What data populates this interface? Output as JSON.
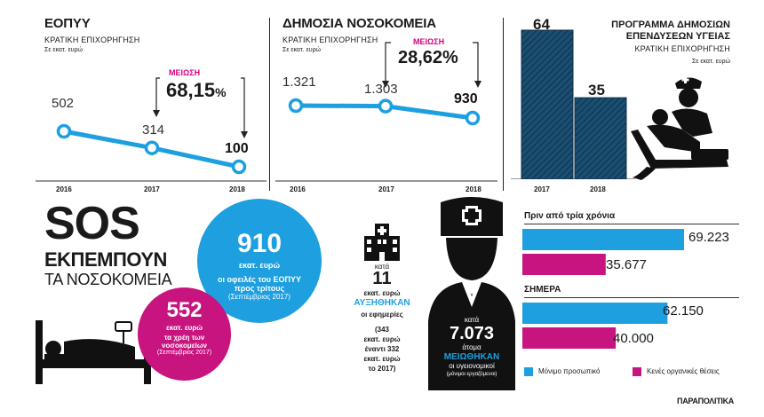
{
  "eopyy": {
    "title": "ΕΟΠΥΥ",
    "subtitle": "ΚΡΑΤΙΚΗ ΕΠΙΧΟΡΗΓΗΣΗ",
    "unit": "Σε εκατ. ευρώ",
    "reduction_label": "ΜΕΙΩΣΗ",
    "reduction_value": "68,15",
    "reduction_pct": "%",
    "point_labels": [
      "502",
      "314",
      "100"
    ]
  },
  "hospitals": {
    "title": "ΔΗΜΟΣΙΑ ΝΟΣΟΚΟΜΕΙΑ",
    "subtitle": "ΚΡΑΤΙΚΗ ΕΠΙΧΟΡΗΓΗΣΗ",
    "unit": "Σε εκατ. ευρώ",
    "reduction_label": "ΜΕΙΩΣΗ",
    "reduction_value": "28,62%",
    "point_labels": [
      "1.321",
      "1.303",
      "930"
    ]
  },
  "program": {
    "title_line1": "ΠΡΟΓΡΑΜΜΑ ΔΗΜΟΣΙΩΝ",
    "title_line2": "ΕΠΕΝΔΥΣΕΩΝ ΥΓΕΙΑΣ",
    "subtitle": "ΚΡΑΤΙΚΗ ΕΠΙΧΟΡΗΓΗΣΗ",
    "unit": "Σε εκατ. ευρώ",
    "bar_labels": [
      "64",
      "35"
    ]
  },
  "sos": {
    "line1": "SOS",
    "line2": "ΕΚΠΕΜΠΟΥΝ",
    "line3": "ΤΑ ΝΟΣΟΚΟΜΕΙΑ"
  },
  "circle_blue": {
    "value": "910",
    "line1": "εκατ. ευρώ",
    "line2": "οι οφειλές του ΕΟΠΥΥ",
    "line3": "προς τρίτους",
    "line4": "(Σεπτέμβριος 2017)"
  },
  "circle_mag": {
    "value": "552",
    "line1": "εκατ. ευρώ",
    "line2": "τα χρέη των",
    "line3": "νοσοκομείων",
    "line4": "(Σεπτέμβριος 2017)"
  },
  "shifts": {
    "kata": "κατά",
    "value": "11",
    "line1": "εκατ. ευρώ",
    "highlight": "ΑΥΞΗΘΗΚΑΝ",
    "line2": "οι εφημερίες",
    "n1": "(343",
    "n2": "εκατ. ευρώ",
    "n3": "έναντι 332",
    "n4": "εκατ. ευρώ",
    "n5": "το 2017)"
  },
  "nurse": {
    "kata": "κατά",
    "value": "7.073",
    "line1": "άτομα",
    "highlight": "ΜΕΙΩΘΗΚΑΝ",
    "line2": "οι υγειονομικοί",
    "line3": "(μόνιμοι εργαζόμενοι)"
  },
  "staff": {
    "header_before": "Πριν από τρία χρόνια",
    "header_now": "ΣΗΜΕΡΑ",
    "bar_labels_before": [
      "69.223",
      "35.677"
    ],
    "bar_labels_now": [
      "62.150",
      "40.000"
    ],
    "legend": [
      "Μόνιμο προσωπικό",
      "Κενές οργανικές θέσεις"
    ]
  },
  "source": "ΠΑΡΑΠΟΛΙΤΙΚΑ",
  "colors": {
    "blue": "#1d9fe0",
    "magenta": "#c8147f",
    "navy": "#1b4f72",
    "dark": "#1a1a1a"
  },
  "chart_data": [
    {
      "type": "line",
      "title": "ΕΟΠΥΥ",
      "x": [
        "2016",
        "2017",
        "2018"
      ],
      "series": [
        {
          "values": [
            502,
            314,
            100
          ]
        }
      ]
    },
    {
      "type": "line",
      "title": "ΔΗΜΟΣΙΑ ΝΟΣΟΚΟΜΕΙΑ",
      "x": [
        "2016",
        "2017",
        "2018"
      ],
      "series": [
        {
          "values": [
            1321,
            1303,
            930
          ]
        }
      ]
    },
    {
      "type": "bar",
      "title": "ΠΡΟΓΡΑΜΜΑ ΔΗΜΟΣΙΩΝ ΕΠΕΝΔΥΣΕΩΝ ΥΓΕΙΑΣ",
      "categories": [
        "2017",
        "2018"
      ],
      "values": [
        64,
        35
      ]
    },
    {
      "type": "bar",
      "orientation": "horizontal",
      "categories": [
        "Πριν από τρία χρόνια",
        "ΣΗΜΕΡΑ"
      ],
      "series": [
        {
          "name": "Μόνιμο προσωπικό",
          "values": [
            69223,
            62150
          ]
        },
        {
          "name": "Κενές οργανικές θέσεις",
          "values": [
            35677,
            40000
          ]
        }
      ],
      "legend": "bottom"
    }
  ]
}
